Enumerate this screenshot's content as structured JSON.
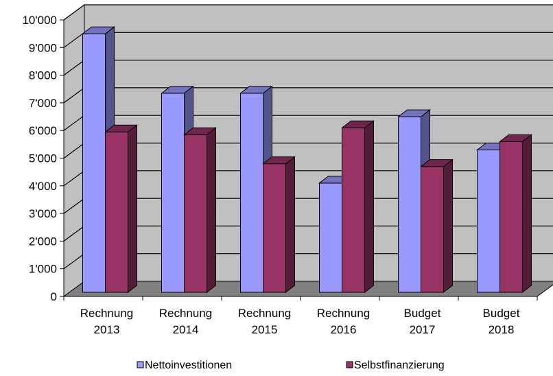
{
  "chart_data": {
    "type": "bar",
    "style": "3d-clustered-column",
    "categories": [
      [
        "Rechnung",
        "2013"
      ],
      [
        "Rechnung",
        "2014"
      ],
      [
        "Rechnung",
        "2015"
      ],
      [
        "Rechnung",
        "2016"
      ],
      [
        "Budget",
        "2017"
      ],
      [
        "Budget",
        "2018"
      ]
    ],
    "series": [
      {
        "name": "Nettoinvestitionen",
        "color": "#9999ff",
        "values": [
          9350,
          7200,
          7200,
          3950,
          6350,
          5150
        ]
      },
      {
        "name": "Selbstfinanzierung",
        "color": "#993366",
        "values": [
          5800,
          5700,
          4650,
          5950,
          4550,
          5450
        ]
      }
    ],
    "y_ticks": [
      "0",
      "1'000",
      "2'000",
      "3'000",
      "4'000",
      "5'000",
      "6'000",
      "7'000",
      "8'000",
      "9'000",
      "10'000"
    ],
    "ylim": [
      0,
      10000
    ],
    "grid": true,
    "legend_position": "bottom",
    "title": "",
    "xlabel": "",
    "ylabel": "",
    "wall_color": "#c0c0c0",
    "floor_color": "#808080"
  }
}
